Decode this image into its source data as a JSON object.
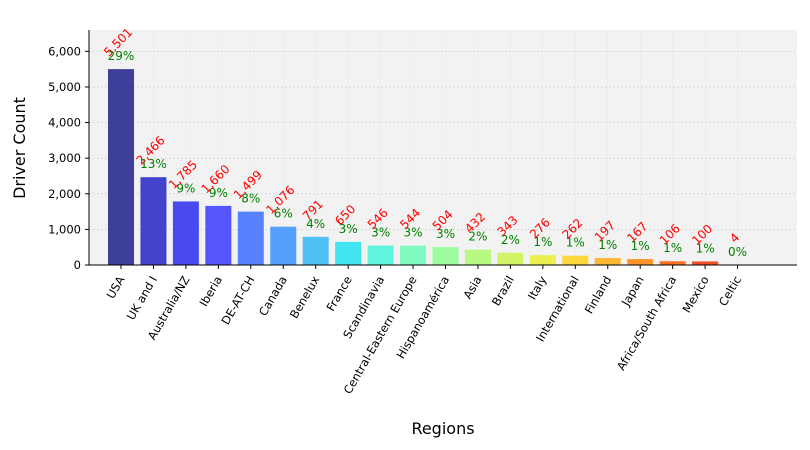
{
  "chart_data": {
    "type": "bar",
    "xlabel": "Regions",
    "ylabel": "Driver Count",
    "ylim": [
      0,
      6600
    ],
    "yticks": [
      0,
      1000,
      2000,
      3000,
      4000,
      5000,
      6000
    ],
    "ytick_labels": [
      "0",
      "1,000",
      "2,000",
      "3,000",
      "4,000",
      "5,000",
      "6,000"
    ],
    "grid": true,
    "background": "#f2f2f2",
    "categories": [
      "USA",
      "UK and I",
      "Australia/NZ",
      "Iberia",
      "DE-AT-CH",
      "Canada",
      "Benelux",
      "France",
      "Scandinavia",
      "Central-Eastern Europe",
      "Hispanoamérica",
      "Asia",
      "Brazil",
      "Italy",
      "International",
      "Finland",
      "Japan",
      "Africa/South Africa",
      "Mexico",
      "Celtic"
    ],
    "values": [
      5501,
      2466,
      1785,
      1660,
      1499,
      1076,
      791,
      650,
      546,
      544,
      504,
      432,
      343,
      276,
      262,
      197,
      167,
      106,
      100,
      4
    ],
    "count_labels": [
      "5,501",
      "2,466",
      "1,785",
      "1,660",
      "1,499",
      "1,076",
      "791",
      "650",
      "546",
      "544",
      "504",
      "432",
      "343",
      "276",
      "262",
      "197",
      "167",
      "106",
      "100",
      "4"
    ],
    "percent_labels": [
      "29%",
      "13%",
      "9%",
      "9%",
      "8%",
      "6%",
      "4%",
      "3%",
      "3%",
      "3%",
      "3%",
      "2%",
      "2%",
      "1%",
      "1%",
      "1%",
      "1%",
      "1%",
      "1%",
      "0%"
    ],
    "colors": [
      "#1f1f8c",
      "#2525c4",
      "#2b2bf0",
      "#3a3aff",
      "#3d6dff",
      "#3b92ff",
      "#33b7f5",
      "#22e2f0",
      "#4af5d9",
      "#6cfcb8",
      "#8efe90",
      "#aefa6d",
      "#cdf44e",
      "#eaee32",
      "#ffd21e",
      "#ffad12",
      "#ff8508",
      "#ff5c02",
      "#f23200",
      "#b10000"
    ],
    "count_label_color": "#ff0000",
    "percent_label_color": "#008000"
  }
}
